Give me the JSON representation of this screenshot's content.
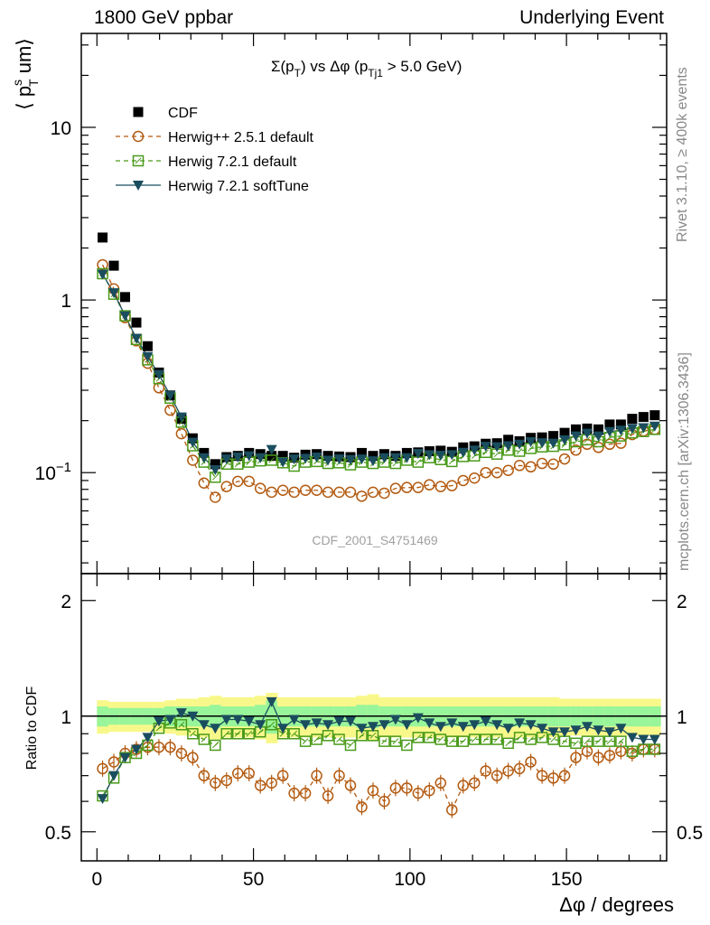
{
  "header": {
    "left": "1800 GeV ppbar",
    "right": "Underlying Event"
  },
  "side_labels": {
    "rivet": "Rivet 3.1.10, ≥ 400k events",
    "mcplots": "mcplots.cern.ch [arXiv:1306.3436]"
  },
  "colors": {
    "cdf": "#000000",
    "herwigpp": "#b35a10",
    "herwig721": "#4a9a1a",
    "softtune": "#1a4d5e",
    "band_inner": "#98f59a",
    "band_outer": "#f8f88a",
    "watermark": "#a0a0a0"
  },
  "chart_data": [
    {
      "type": "scatter",
      "title": "Σ(p_T) vs Δφ (p_Tj1 > 5.0 GeV)",
      "ylabel": "⟨ p_T^s um⟩",
      "xlim": [
        -5,
        182
      ],
      "ylim": [
        0.026,
        35
      ],
      "y_scale": "log",
      "y_ticks": [
        "10^-1",
        "1",
        "10"
      ],
      "watermark": "CDF_2001_S4751469",
      "legend": "top-left",
      "x": [
        1.8,
        5.4,
        9.0,
        12.6,
        16.2,
        19.8,
        23.4,
        27.0,
        30.6,
        34.2,
        37.8,
        41.4,
        45.0,
        48.6,
        52.2,
        55.8,
        59.4,
        63.0,
        66.6,
        70.2,
        73.8,
        77.4,
        81.0,
        84.6,
        88.2,
        91.8,
        95.4,
        99.0,
        102.6,
        106.2,
        109.8,
        113.4,
        117.0,
        120.6,
        124.2,
        127.8,
        131.4,
        135.0,
        138.6,
        142.2,
        145.8,
        149.4,
        153.0,
        156.6,
        160.2,
        163.8,
        167.4,
        171.0,
        174.6,
        178.2
      ],
      "series": [
        {
          "name": "CDF",
          "marker": "filled-square",
          "values": [
            2.3,
            1.58,
            1.04,
            0.74,
            0.54,
            0.38,
            0.28,
            0.205,
            0.158,
            0.13,
            0.112,
            0.123,
            0.125,
            0.13,
            0.128,
            0.125,
            0.125,
            0.122,
            0.127,
            0.128,
            0.125,
            0.124,
            0.123,
            0.13,
            0.125,
            0.128,
            0.125,
            0.13,
            0.131,
            0.133,
            0.134,
            0.132,
            0.14,
            0.142,
            0.147,
            0.148,
            0.155,
            0.152,
            0.159,
            0.16,
            0.163,
            0.17,
            0.178,
            0.18,
            0.178,
            0.19,
            0.19,
            0.205,
            0.21,
            0.215
          ]
        },
        {
          "name": "Herwig++ 2.5.1 default",
          "marker": "open-circle",
          "values": [
            1.6,
            1.16,
            0.79,
            0.58,
            0.43,
            0.31,
            0.23,
            0.168,
            0.118,
            0.087,
            0.072,
            0.083,
            0.089,
            0.089,
            0.081,
            0.077,
            0.079,
            0.077,
            0.079,
            0.079,
            0.077,
            0.077,
            0.077,
            0.073,
            0.077,
            0.076,
            0.081,
            0.082,
            0.082,
            0.085,
            0.083,
            0.084,
            0.09,
            0.093,
            0.1,
            0.1,
            0.103,
            0.11,
            0.108,
            0.113,
            0.112,
            0.12,
            0.135,
            0.146,
            0.14,
            0.146,
            0.148,
            0.166,
            0.174,
            0.178
          ]
        },
        {
          "name": "Herwig 7.2.1 default",
          "marker": "open-square",
          "values": [
            1.42,
            1.08,
            0.81,
            0.59,
            0.45,
            0.35,
            0.27,
            0.196,
            0.143,
            0.115,
            0.094,
            0.112,
            0.112,
            0.115,
            0.117,
            0.118,
            0.114,
            0.109,
            0.115,
            0.116,
            0.113,
            0.114,
            0.111,
            0.115,
            0.113,
            0.115,
            0.113,
            0.118,
            0.115,
            0.122,
            0.119,
            0.116,
            0.124,
            0.125,
            0.131,
            0.128,
            0.135,
            0.133,
            0.138,
            0.141,
            0.142,
            0.145,
            0.151,
            0.155,
            0.151,
            0.16,
            0.163,
            0.17,
            0.173,
            0.178
          ]
        },
        {
          "name": "Herwig 7.2.1 softTune",
          "marker": "filled-triangle-down",
          "values": [
            1.41,
            1.1,
            0.81,
            0.6,
            0.47,
            0.37,
            0.28,
            0.21,
            0.15,
            0.122,
            0.104,
            0.12,
            0.123,
            0.125,
            0.122,
            0.136,
            0.115,
            0.12,
            0.121,
            0.123,
            0.118,
            0.12,
            0.119,
            0.12,
            0.117,
            0.122,
            0.122,
            0.122,
            0.129,
            0.127,
            0.126,
            0.127,
            0.131,
            0.135,
            0.142,
            0.141,
            0.143,
            0.146,
            0.151,
            0.149,
            0.148,
            0.155,
            0.163,
            0.169,
            0.163,
            0.173,
            0.176,
            0.18,
            0.182,
            0.186
          ]
        }
      ]
    },
    {
      "type": "scatter",
      "ylabel": "Ratio to CDF",
      "xlabel": "Δφ / degrees",
      "xlim": [
        -5,
        182
      ],
      "ylim": [
        0.42,
        2.35
      ],
      "y_scale": "log",
      "y_ticks": [
        "0.5",
        "1",
        "2"
      ],
      "x_ticks": [
        "0",
        "50",
        "100",
        "150"
      ],
      "reference_line": 1,
      "band_inner_halfwidth": [
        0.06,
        0.05,
        0.05,
        0.05,
        0.05,
        0.05,
        0.06,
        0.06,
        0.06,
        0.06,
        0.07,
        0.06,
        0.06,
        0.06,
        0.07,
        0.1,
        0.06,
        0.06,
        0.06,
        0.06,
        0.06,
        0.06,
        0.06,
        0.07,
        0.07,
        0.06,
        0.06,
        0.06,
        0.06,
        0.06,
        0.06,
        0.06,
        0.06,
        0.06,
        0.06,
        0.06,
        0.06,
        0.06,
        0.06,
        0.06,
        0.06,
        0.06,
        0.06,
        0.06,
        0.06,
        0.06,
        0.06,
        0.06,
        0.06,
        0.06
      ],
      "band_outer_halfwidth": [
        0.1,
        0.09,
        0.09,
        0.09,
        0.09,
        0.09,
        0.1,
        0.11,
        0.11,
        0.12,
        0.13,
        0.12,
        0.12,
        0.12,
        0.13,
        0.15,
        0.12,
        0.12,
        0.12,
        0.12,
        0.12,
        0.12,
        0.12,
        0.13,
        0.14,
        0.12,
        0.12,
        0.12,
        0.12,
        0.12,
        0.12,
        0.12,
        0.12,
        0.12,
        0.12,
        0.12,
        0.12,
        0.12,
        0.12,
        0.12,
        0.12,
        0.11,
        0.11,
        0.11,
        0.11,
        0.11,
        0.11,
        0.11,
        0.11,
        0.11
      ],
      "x": [
        1.8,
        5.4,
        9.0,
        12.6,
        16.2,
        19.8,
        23.4,
        27.0,
        30.6,
        34.2,
        37.8,
        41.4,
        45.0,
        48.6,
        52.2,
        55.8,
        59.4,
        63.0,
        66.6,
        70.2,
        73.8,
        77.4,
        81.0,
        84.6,
        88.2,
        91.8,
        95.4,
        99.0,
        102.6,
        106.2,
        109.8,
        113.4,
        117.0,
        120.6,
        124.2,
        127.8,
        131.4,
        135.0,
        138.6,
        142.2,
        145.8,
        149.4,
        153.0,
        156.6,
        160.2,
        163.8,
        167.4,
        171.0,
        174.6,
        178.2
      ],
      "series": [
        {
          "name": "Herwig++ 2.5.1 default",
          "values": [
            0.73,
            0.76,
            0.8,
            0.82,
            0.83,
            0.83,
            0.83,
            0.8,
            0.78,
            0.7,
            0.67,
            0.68,
            0.71,
            0.71,
            0.66,
            0.67,
            0.7,
            0.63,
            0.63,
            0.7,
            0.62,
            0.7,
            0.66,
            0.58,
            0.64,
            0.6,
            0.65,
            0.65,
            0.63,
            0.64,
            0.67,
            0.57,
            0.66,
            0.67,
            0.72,
            0.7,
            0.72,
            0.73,
            0.76,
            0.7,
            0.69,
            0.7,
            0.78,
            0.81,
            0.78,
            0.79,
            0.81,
            0.8,
            0.82,
            0.82
          ]
        },
        {
          "name": "Herwig 7.2.1 default",
          "values": [
            0.62,
            0.69,
            0.78,
            0.8,
            0.84,
            0.93,
            0.96,
            0.95,
            0.9,
            0.87,
            0.84,
            0.9,
            0.9,
            0.9,
            0.91,
            0.95,
            0.9,
            0.9,
            0.86,
            0.87,
            0.89,
            0.87,
            0.84,
            0.89,
            0.89,
            0.86,
            0.86,
            0.84,
            0.88,
            0.88,
            0.87,
            0.86,
            0.86,
            0.87,
            0.87,
            0.87,
            0.85,
            0.88,
            0.87,
            0.88,
            0.87,
            0.86,
            0.85,
            0.86,
            0.86,
            0.86,
            0.86,
            0.81,
            0.82,
            0.82
          ]
        },
        {
          "name": "Herwig 7.2.1 softTune",
          "values": [
            0.61,
            0.7,
            0.78,
            0.82,
            0.88,
            0.97,
            0.98,
            1.02,
            1.0,
            0.95,
            0.93,
            0.98,
            0.98,
            0.97,
            0.95,
            1.09,
            0.93,
            0.98,
            0.95,
            0.96,
            0.95,
            0.97,
            0.97,
            0.93,
            0.94,
            0.95,
            0.98,
            0.95,
            0.99,
            0.96,
            0.94,
            0.96,
            0.94,
            0.95,
            0.97,
            0.95,
            0.93,
            0.96,
            0.95,
            0.93,
            0.91,
            0.91,
            0.92,
            0.94,
            0.92,
            0.91,
            0.93,
            0.88,
            0.87,
            0.87
          ]
        }
      ]
    }
  ]
}
